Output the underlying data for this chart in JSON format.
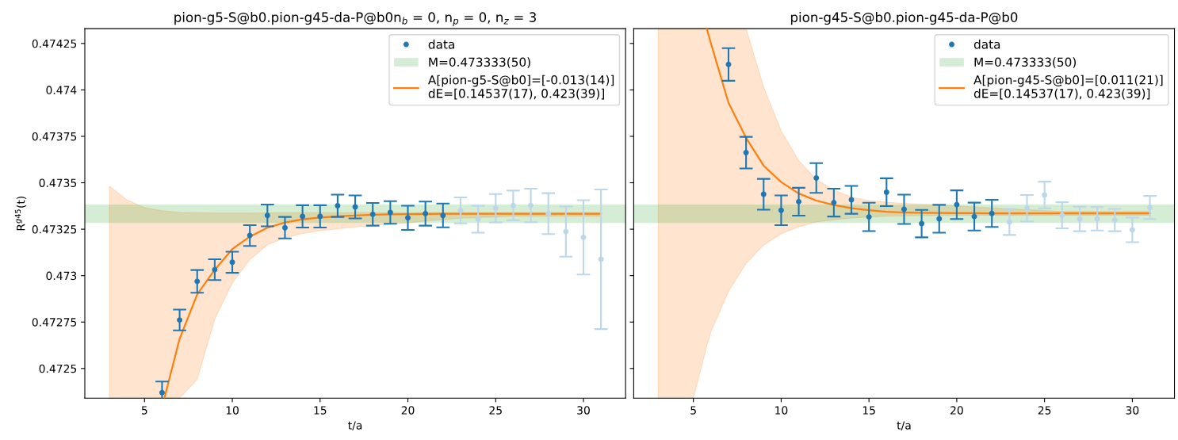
{
  "chart_data": [
    {
      "type": "scatter",
      "title": "pion-g5-S@b0.pion-g45-da-P@b0n$_{b}$ = 0, n$_{p}$ = 0, n$_{z}$ = 3",
      "xlabel": "t/a",
      "ylabel": "R$^{g45}$(t)",
      "xlim": [
        1.6,
        32.4
      ],
      "xticks": [
        5,
        10,
        15,
        20,
        25,
        30
      ],
      "ylim": [
        0.47234,
        0.47433
      ],
      "yticks": [
        0.4725,
        0.47275,
        0.473,
        0.47325,
        0.4735,
        0.47375,
        0.474,
        0.47425
      ],
      "grid": false,
      "legend": "top right",
      "bands": [
        {
          "axis": "y",
          "from": 0.473283,
          "to": 0.473383,
          "label": "M=0.473333(50)",
          "color": "#2ca02c"
        }
      ],
      "series": [
        {
          "type": "line",
          "name": "A[pion-g5-S@b0]=[-0.013(14)]\ndE=[0.14537(17), 0.423(39)]",
          "color": "#ff7f0e",
          "x": [
            3,
            4,
            5,
            6,
            6.13,
            7,
            8,
            9,
            10,
            11,
            12,
            13,
            14,
            15,
            16,
            17,
            18,
            19,
            20,
            21,
            22,
            23,
            24,
            25,
            26,
            27,
            28,
            29,
            30,
            31
          ],
          "values": [
            null,
            null,
            null,
            null,
            0.47234,
            0.47266,
            0.472899,
            0.473032,
            0.473143,
            0.47321,
            0.473258,
            0.473286,
            0.473303,
            0.473313,
            0.473319,
            0.473324,
            0.473328,
            0.47333,
            0.473331,
            0.473332,
            0.473333,
            0.473333,
            0.473333,
            0.473333,
            0.473333,
            0.473333,
            0.473333,
            0.473333,
            0.473333,
            0.473333
          ],
          "lower": [
            0.47234,
            0.47234,
            0.47234,
            0.47234,
            0.47234,
            0.47234,
            0.472441,
            0.472766,
            0.47296,
            0.473086,
            0.473166,
            0.473204,
            0.473227,
            0.473242,
            0.473252,
            0.473262,
            0.473269,
            0.473277,
            0.473284,
            0.473294,
            0.473302,
            0.473309,
            0.473313,
            0.473317,
            0.47332,
            0.47332,
            0.47332,
            0.47332,
            0.47332,
            0.47332
          ],
          "upper": [
            0.473481,
            0.473408,
            0.473366,
            0.473349,
            0.473348,
            0.473341,
            0.473338,
            0.473337,
            0.473337,
            0.473337,
            0.473338,
            0.473338,
            0.473338,
            0.473338,
            0.473338,
            0.473339,
            0.473339,
            0.473339,
            0.473339,
            0.473339,
            0.473339,
            0.473339,
            0.473339,
            0.473339,
            0.473339,
            0.473339,
            0.473339,
            0.473339,
            0.473339,
            0.473339
          ]
        },
        {
          "name": "data",
          "marker": "circle",
          "color": "#1f77b4",
          "x": [
            6,
            7,
            8,
            9,
            10,
            11,
            12,
            13,
            14,
            15,
            16,
            17,
            18,
            19,
            20,
            21,
            22
          ],
          "values": [
            0.47237,
            0.472761,
            0.472969,
            0.473032,
            0.473072,
            0.473216,
            0.473324,
            0.473258,
            0.473319,
            0.473319,
            0.473376,
            0.47337,
            0.47333,
            0.47334,
            0.473311,
            0.473334,
            0.473324
          ],
          "errors": [
            6e-05,
            5.6e-05,
            6.1e-05,
            5.6e-05,
            5.7e-05,
            5.6e-05,
            5.9e-05,
            5.8e-05,
            6e-05,
            6e-05,
            6e-05,
            6.2e-05,
            6.1e-05,
            6.1e-05,
            6.5e-05,
            6.5e-05,
            6.4e-05
          ]
        },
        {
          "marker": "circle",
          "color": "#bcd6ea",
          "x": [
            23,
            24,
            25,
            26,
            27,
            28,
            29,
            30,
            31
          ],
          "values": [
            0.473351,
            0.473304,
            0.473363,
            0.473378,
            0.473378,
            0.473334,
            0.473237,
            0.473206,
            0.473088
          ],
          "errors": [
            7e-05,
            7.3e-05,
            7.6e-05,
            8e-05,
            9e-05,
            0.00011,
            0.000135,
            0.0002,
            0.000376
          ]
        }
      ]
    },
    {
      "type": "scatter",
      "title": "pion-g45-S@b0.pion-g45-da-P@b0",
      "xlabel": "t/a",
      "xlim": [
        1.6,
        32.4
      ],
      "xticks": [
        5,
        10,
        15,
        20,
        25,
        30
      ],
      "ylim": [
        0.47234,
        0.47433
      ],
      "yticks": [
        0.4725,
        0.47275,
        0.473,
        0.47325,
        0.4735,
        0.47375,
        0.474,
        0.47425
      ],
      "tick_labels": "x",
      "grid": false,
      "legend": "top right",
      "bands": [
        {
          "axis": "y",
          "from": 0.473283,
          "to": 0.473383,
          "label": "M=0.473333(50)",
          "color": "#2ca02c"
        }
      ],
      "series": [
        {
          "type": "line",
          "name": "A[pion-g45-S@b0]=[0.011(21)]\ndE=[0.14537(17), 0.423(39)]",
          "color": "#ff7f0e",
          "x": [
            3,
            4,
            5,
            5.76,
            6,
            7,
            8,
            9,
            10,
            11,
            12,
            13,
            14,
            15,
            16,
            17,
            18,
            19,
            20,
            21,
            22,
            23,
            24,
            25,
            26,
            27,
            28,
            29,
            30,
            31
          ],
          "values": [
            null,
            null,
            null,
            0.47433,
            0.47425,
            0.47393,
            0.473742,
            0.473592,
            0.473504,
            0.473442,
            0.473404,
            0.47338,
            0.473363,
            0.473352,
            0.473344,
            0.47334,
            0.473338,
            0.473337,
            0.473336,
            0.473336,
            0.473335,
            0.473335,
            0.473335,
            0.473335,
            0.473335,
            0.473335,
            0.473335,
            0.473335,
            0.473335,
            0.473335
          ],
          "lower": [
            0.47234,
            0.47234,
            0.47234,
            0.47262,
            0.472699,
            0.472915,
            0.473066,
            0.473165,
            0.473226,
            0.473263,
            0.473289,
            0.473301,
            0.47331,
            0.473316,
            0.47332,
            0.473322,
            0.473323,
            0.473324,
            0.473325,
            0.473325,
            0.473325,
            0.473325,
            0.473325,
            0.473325,
            0.473325,
            0.473325,
            0.473325,
            0.473325,
            0.473325,
            0.473325
          ],
          "upper": [
            0.47433,
            0.47433,
            0.47433,
            0.47433,
            0.47433,
            0.47433,
            0.47433,
            0.474015,
            0.47378,
            0.47362,
            0.473517,
            0.473461,
            0.473423,
            0.473404,
            0.473395,
            0.473389,
            0.473385,
            0.47338,
            0.473375,
            0.47337,
            0.473365,
            0.47336,
            0.473355,
            0.47335,
            0.473345,
            0.473345,
            0.473345,
            0.473345,
            0.473345,
            0.473345
          ]
        },
        {
          "name": "data",
          "marker": "circle",
          "color": "#1f77b4",
          "x": [
            7,
            8,
            9,
            10,
            11,
            12,
            13,
            14,
            15,
            16,
            17,
            18,
            19,
            20,
            21,
            22
          ],
          "values": [
            0.474137,
            0.473662,
            0.473438,
            0.473352,
            0.473398,
            0.473526,
            0.473393,
            0.473408,
            0.473316,
            0.473449,
            0.473357,
            0.47328,
            0.473306,
            0.473382,
            0.473318,
            0.473335
          ],
          "errors": [
            8.8e-05,
            8.5e-05,
            8.3e-05,
            8e-05,
            7.5e-05,
            8e-05,
            7.5e-05,
            7.5e-05,
            7.6e-05,
            7.5e-05,
            7.9e-05,
            7.4e-05,
            7.5e-05,
            7.7e-05,
            7.5e-05,
            7.3e-05
          ]
        },
        {
          "marker": "circle",
          "color": "#bcd6ea",
          "x": [
            23,
            24,
            25,
            26,
            27,
            28,
            29,
            30,
            31
          ],
          "values": [
            0.473289,
            0.473363,
            0.473434,
            0.473325,
            0.473305,
            0.473306,
            0.473299,
            0.473246,
            0.473367
          ],
          "errors": [
            7e-05,
            7.1e-05,
            7.2e-05,
            7e-05,
            6.6e-05,
            6.3e-05,
            6e-05,
            6.6e-05,
            6.2e-05
          ]
        }
      ]
    }
  ]
}
